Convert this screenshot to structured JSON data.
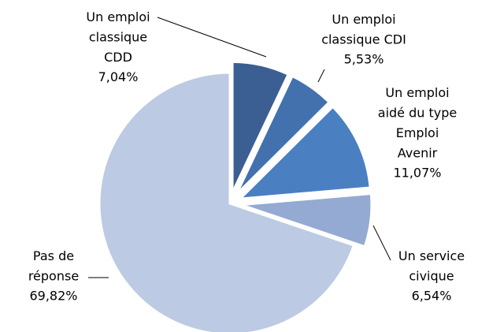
{
  "chart_data": {
    "type": "pie",
    "categories": [
      "Un emploi\nclassique\nCDD",
      "Un emploi\nclassique CDI",
      "Un emploi\naidé du type\nEmploi\nAvenir",
      "Un service\ncivique",
      "Pas de\nréponse"
    ],
    "values": [
      7.04,
      5.53,
      11.07,
      6.54,
      69.82
    ],
    "value_labels": [
      "7,04%",
      "5,53%",
      "11,07%",
      "6,54%",
      "69,82%"
    ],
    "colors": [
      "#3b5f93",
      "#4271ae",
      "#4a7fc2",
      "#94aad2",
      "#bccae3"
    ]
  }
}
